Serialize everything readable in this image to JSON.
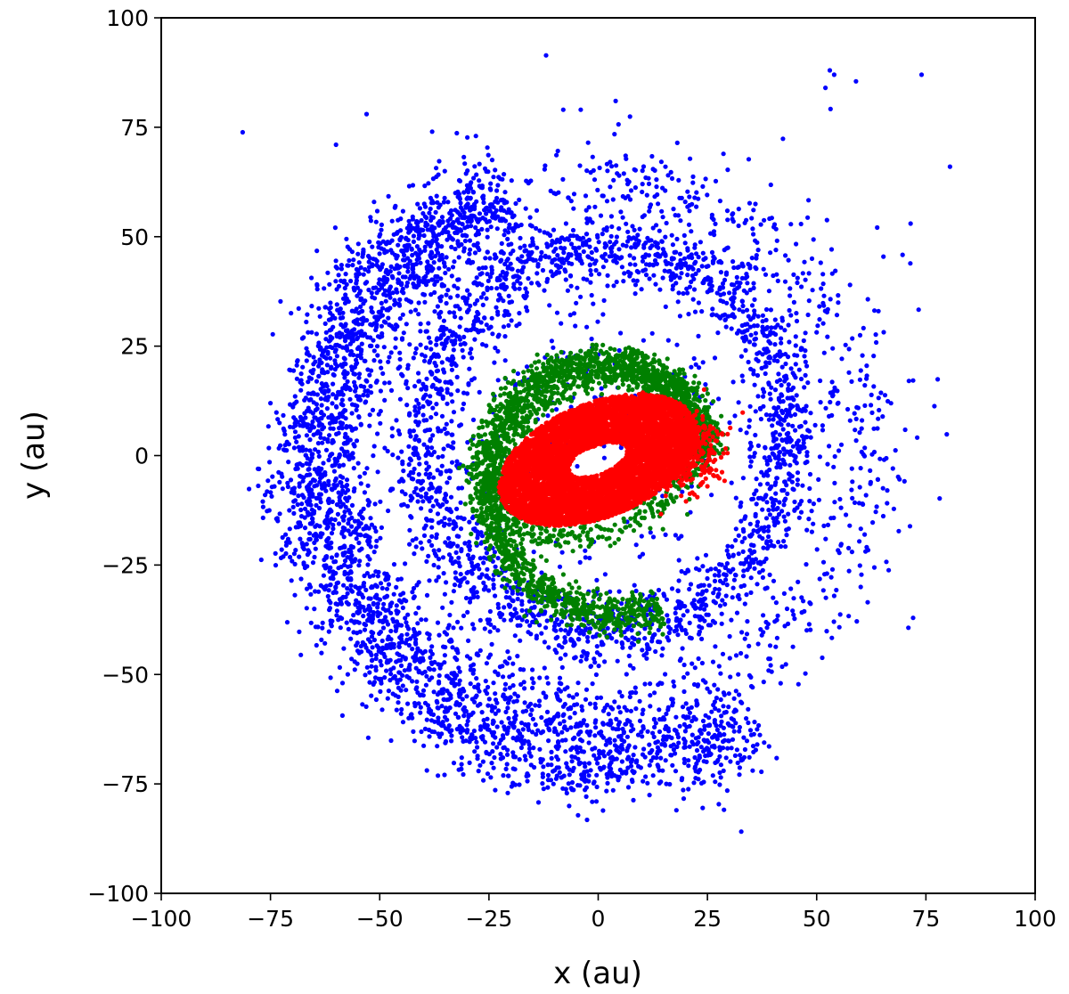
{
  "chart_data": {
    "type": "scatter",
    "title": "",
    "xlabel": "x (au)",
    "ylabel": "y (au)",
    "xlim": [
      -100,
      100
    ],
    "ylim": [
      -100,
      100
    ],
    "xticks": [
      -100,
      -75,
      -50,
      -25,
      0,
      25,
      50,
      75,
      100
    ],
    "yticks": [
      -100,
      -75,
      -50,
      -25,
      0,
      25,
      50,
      75,
      100
    ],
    "xtick_labels": [
      "−100",
      "−75",
      "−50",
      "−25",
      "0",
      "25",
      "50",
      "75",
      "100"
    ],
    "ytick_labels": [
      "−100",
      "−75",
      "−50",
      "−25",
      "0",
      "25",
      "50",
      "75",
      "100"
    ],
    "grid": false,
    "legend": "none",
    "series": [
      {
        "color": "#0000ff",
        "structure": [
          {
            "kind": "ring",
            "cx": 2,
            "cy": 4,
            "a": 42,
            "b": 44,
            "rot": 0,
            "spread": 4,
            "n": 2000
          },
          {
            "kind": "spiral",
            "cx": 0,
            "cy": 2,
            "r0": 60,
            "r1": 72,
            "theta0": 110,
            "theta1": 300,
            "spread": 6,
            "n": 2600
          },
          {
            "kind": "ring",
            "cx": 0,
            "cy": 2,
            "a": 62,
            "b": 60,
            "rot": 0,
            "spread": 5,
            "n": 900
          },
          {
            "kind": "cloud",
            "cx": 8,
            "cy": 10,
            "sx": 30,
            "sy": 26,
            "n": 450
          }
        ],
        "outliers": [
          [
            52,
            84
          ],
          [
            53,
            88
          ],
          [
            54,
            87
          ],
          [
            59,
            85.5
          ],
          [
            74,
            87
          ],
          [
            80.5,
            66
          ],
          [
            71.5,
            53
          ],
          [
            -53,
            78
          ],
          [
            4,
            81
          ],
          [
            -8,
            79
          ],
          [
            -4,
            79
          ],
          [
            -60,
            71
          ],
          [
            -38,
            74
          ],
          [
            -28,
            73
          ]
        ]
      },
      {
        "color": "#008000",
        "structure": [
          {
            "kind": "spiral",
            "cx": 3,
            "cy": -4,
            "r0": 22,
            "r1": 33,
            "theta0": 10,
            "theta1": 290,
            "spread": 2.2,
            "n": 1900
          },
          {
            "kind": "ellipse-band",
            "cx": 0,
            "cy": 0,
            "a": 25,
            "b": 17,
            "rot": 25,
            "spread": 1.8,
            "n": 700
          }
        ]
      },
      {
        "color": "#ff0000",
        "structure": [
          {
            "kind": "ellipse-fill",
            "cx": 0,
            "cy": -1,
            "a": 24,
            "b": 13,
            "rot": 22,
            "hole_a": 7,
            "hole_b": 3.2,
            "n": 6500
          },
          {
            "kind": "cloud",
            "cx": 20,
            "cy": 1,
            "sx": 4,
            "sy": 4.5,
            "n": 350
          }
        ]
      }
    ]
  }
}
